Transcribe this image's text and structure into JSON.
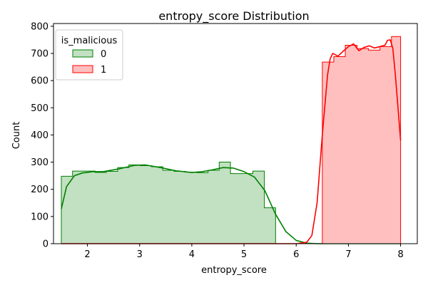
{
  "chart_data": {
    "type": "histogram",
    "title": "entropy_score Distribution",
    "xlabel": "entropy_score",
    "ylabel": "Count",
    "xlim": [
      1.35,
      8.32
    ],
    "ylim": [
      0,
      810
    ],
    "xticks": [
      2,
      3,
      4,
      5,
      6,
      7,
      8
    ],
    "yticks": [
      0,
      100,
      200,
      300,
      400,
      500,
      600,
      700,
      800
    ],
    "grid": false,
    "legend": {
      "title": "is_malicious",
      "placement": "top-left",
      "entries": [
        "0",
        "1"
      ]
    },
    "series": [
      {
        "name": "0",
        "color": "#008000",
        "fill": "#c2e0c2",
        "bin_edges": [
          1.5,
          1.715,
          1.93,
          2.15,
          2.365,
          2.58,
          2.795,
          3.01,
          3.23,
          3.445,
          3.66,
          3.875,
          4.09,
          4.31,
          4.525,
          4.74,
          4.955,
          5.17,
          5.39,
          5.605
        ],
        "counts": [
          248,
          267,
          267,
          262,
          266,
          280,
          290,
          287,
          283,
          270,
          266,
          263,
          261,
          270,
          300,
          258,
          258,
          267,
          132
        ],
        "kde_x": [
          1.5,
          1.6,
          1.75,
          1.9,
          2.1,
          2.3,
          2.6,
          2.9,
          3.1,
          3.4,
          3.7,
          4.0,
          4.2,
          4.4,
          4.6,
          4.8,
          5.0,
          5.2,
          5.4,
          5.6,
          5.8,
          6.0,
          6.2,
          6.4,
          6.6,
          6.8,
          7.0,
          7.5,
          8.0
        ],
        "kde_y": [
          128,
          210,
          250,
          260,
          265,
          265,
          275,
          288,
          290,
          280,
          268,
          262,
          265,
          272,
          280,
          278,
          265,
          245,
          195,
          110,
          45,
          12,
          2,
          0,
          0,
          0,
          0,
          0,
          0
        ]
      },
      {
        "name": "1",
        "color": "#ff0000",
        "fill": "#ffbfbf",
        "bin_edges": [
          6.5,
          6.72,
          6.94,
          7.165,
          7.385,
          7.605,
          7.825,
          8.0
        ],
        "counts": [
          668,
          688,
          730,
          718,
          712,
          725,
          762
        ],
        "kde_x": [
          1.5,
          3.0,
          5.0,
          6.0,
          6.2,
          6.3,
          6.4,
          6.5,
          6.6,
          6.65,
          6.7,
          6.8,
          6.9,
          7.0,
          7.1,
          7.2,
          7.3,
          7.4,
          7.5,
          7.6,
          7.7,
          7.75,
          7.8,
          7.85,
          7.9,
          7.95,
          8.0
        ],
        "kde_y": [
          0,
          0,
          0,
          0,
          5,
          30,
          150,
          400,
          620,
          680,
          700,
          690,
          708,
          725,
          735,
          710,
          722,
          728,
          720,
          725,
          730,
          748,
          750,
          720,
          620,
          500,
          380
        ]
      }
    ]
  }
}
